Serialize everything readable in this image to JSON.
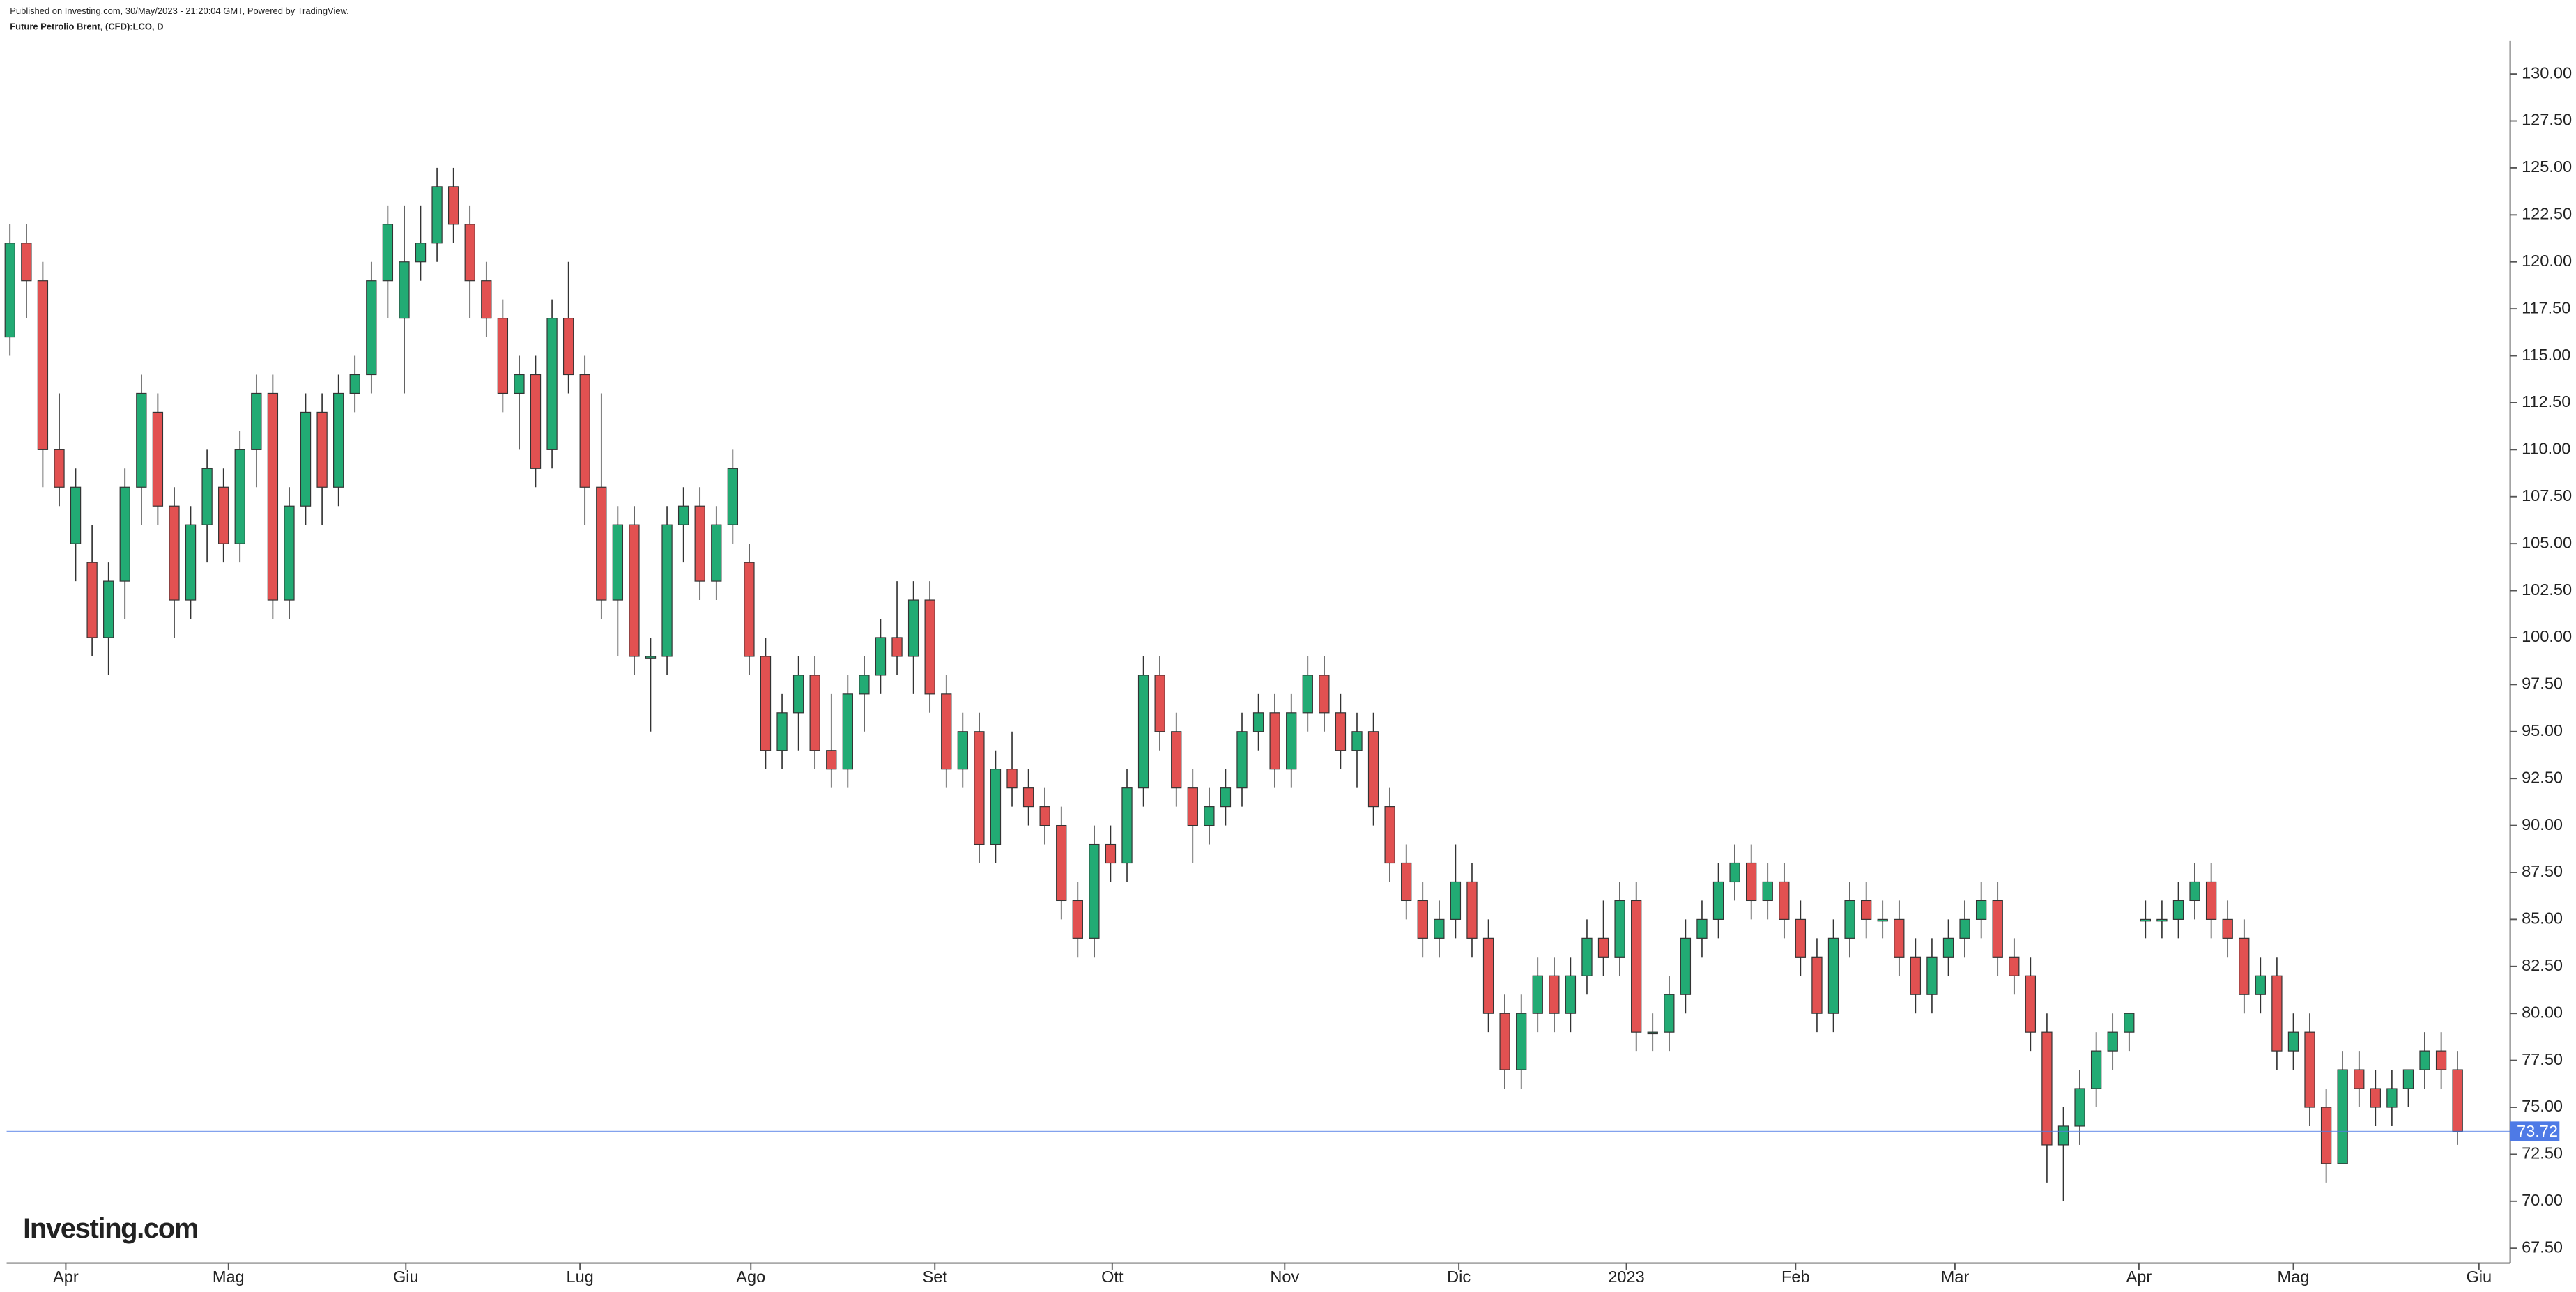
{
  "header": {
    "published": "Published on Investing.com, 30/May/2023 - 21:20:04 GMT, Powered by TradingView.",
    "symbol": "Future Petrolio Brent, (CFD):LCO, D"
  },
  "logo": "Investing.com",
  "chart_data": {
    "type": "candlestick",
    "up_color": "#22ab74",
    "down_color": "#e25151",
    "last_price": 73.72,
    "last_price_color": "#4e7ae6",
    "xlim": [
      -0.2,
      152.2
    ],
    "ylim": [
      66.71,
      131.75
    ],
    "xticks": [
      {
        "value": 3.4,
        "label": "Apr"
      },
      {
        "value": 13.3,
        "label": "Mag"
      },
      {
        "value": 24.1,
        "label": "Giu"
      },
      {
        "value": 34.7,
        "label": "Lug"
      },
      {
        "value": 45.1,
        "label": "Ago"
      },
      {
        "value": 56.3,
        "label": "Set"
      },
      {
        "value": 67.1,
        "label": "Ott"
      },
      {
        "value": 77.6,
        "label": "Nov"
      },
      {
        "value": 88.2,
        "label": "Dic"
      },
      {
        "value": 98.4,
        "label": "2023"
      },
      {
        "value": 108.7,
        "label": "Feb"
      },
      {
        "value": 118.4,
        "label": "Mar"
      },
      {
        "value": 129.6,
        "label": "Apr"
      },
      {
        "value": 139,
        "label": "Mag"
      },
      {
        "value": 150.3,
        "label": "Giu"
      }
    ],
    "yticks": [
      {
        "value": 67.5,
        "label": "67.50"
      },
      {
        "value": 70,
        "label": "70.00"
      },
      {
        "value": 72.5,
        "label": "72.50"
      },
      {
        "value": 75,
        "label": "75.00"
      },
      {
        "value": 77.5,
        "label": "77.50"
      },
      {
        "value": 80,
        "label": "80.00"
      },
      {
        "value": 82.5,
        "label": "82.50"
      },
      {
        "value": 85,
        "label": "85.00"
      },
      {
        "value": 87.5,
        "label": "87.50"
      },
      {
        "value": 90,
        "label": "90.00"
      },
      {
        "value": 92.5,
        "label": "92.50"
      },
      {
        "value": 95,
        "label": "95.00"
      },
      {
        "value": 97.5,
        "label": "97.50"
      },
      {
        "value": 100,
        "label": "100.00"
      },
      {
        "value": 102.5,
        "label": "102.50"
      },
      {
        "value": 105,
        "label": "105.00"
      },
      {
        "value": 107.5,
        "label": "107.50"
      },
      {
        "value": 110,
        "label": "110.00"
      },
      {
        "value": 112.5,
        "label": "112.50"
      },
      {
        "value": 115,
        "label": "115.00"
      },
      {
        "value": 117.5,
        "label": "117.50"
      },
      {
        "value": 120,
        "label": "120.00"
      },
      {
        "value": 122.5,
        "label": "122.50"
      },
      {
        "value": 125,
        "label": "125.00"
      },
      {
        "value": 127.5,
        "label": "127.50"
      },
      {
        "value": 130,
        "label": "130.00"
      }
    ],
    "ohlc": [
      [
        116,
        122,
        115,
        121
      ],
      [
        121,
        122,
        117,
        119
      ],
      [
        119,
        120,
        108,
        110
      ],
      [
        110,
        113,
        107,
        108
      ],
      [
        105,
        109,
        103,
        108
      ],
      [
        104,
        106,
        99,
        100
      ],
      [
        100,
        104,
        98,
        103
      ],
      [
        103,
        109,
        101,
        108
      ],
      [
        108,
        114,
        106,
        113
      ],
      [
        112,
        113,
        106,
        107
      ],
      [
        107,
        108,
        100,
        102
      ],
      [
        102,
        107,
        101,
        106
      ],
      [
        106,
        110,
        104,
        109
      ],
      [
        108,
        109,
        104,
        105
      ],
      [
        105,
        111,
        104,
        110
      ],
      [
        110,
        114,
        108,
        113
      ],
      [
        113,
        114,
        101,
        102
      ],
      [
        102,
        108,
        101,
        107
      ],
      [
        107,
        113,
        106,
        112
      ],
      [
        112,
        113,
        106,
        108
      ],
      [
        108,
        114,
        107,
        113
      ],
      [
        113,
        115,
        112,
        114
      ],
      [
        114,
        120,
        113,
        119
      ],
      [
        119,
        123,
        117,
        122
      ],
      [
        117,
        123,
        113,
        120
      ],
      [
        120,
        123,
        119,
        121
      ],
      [
        121,
        125,
        120,
        124
      ],
      [
        124,
        125,
        121,
        122
      ],
      [
        122,
        123,
        117,
        119
      ],
      [
        119,
        120,
        116,
        117
      ],
      [
        117,
        118,
        112,
        113
      ],
      [
        113,
        115,
        110,
        114
      ],
      [
        114,
        115,
        108,
        109
      ],
      [
        110,
        118,
        109,
        117
      ],
      [
        117,
        120,
        113,
        114
      ],
      [
        114,
        115,
        106,
        108
      ],
      [
        108,
        113,
        101,
        102
      ],
      [
        102,
        107,
        99,
        106
      ],
      [
        106,
        107,
        98,
        99
      ],
      [
        99,
        100,
        95,
        99
      ],
      [
        99,
        107,
        98,
        106
      ],
      [
        106,
        108,
        104,
        107
      ],
      [
        107,
        108,
        102,
        103
      ],
      [
        103,
        107,
        102,
        106
      ],
      [
        106,
        110,
        105,
        109
      ],
      [
        104,
        105,
        98,
        99
      ],
      [
        99,
        100,
        93,
        94
      ],
      [
        94,
        97,
        93,
        96
      ],
      [
        96,
        99,
        94,
        98
      ],
      [
        98,
        99,
        93,
        94
      ],
      [
        94,
        97,
        92,
        93
      ],
      [
        93,
        98,
        92,
        97
      ],
      [
        97,
        99,
        95,
        98
      ],
      [
        98,
        101,
        97,
        100
      ],
      [
        100,
        103,
        98,
        99
      ],
      [
        99,
        103,
        97,
        102
      ],
      [
        102,
        103,
        96,
        97
      ],
      [
        97,
        98,
        92,
        93
      ],
      [
        93,
        96,
        92,
        95
      ],
      [
        95,
        96,
        88,
        89
      ],
      [
        89,
        94,
        88,
        93
      ],
      [
        93,
        95,
        91,
        92
      ],
      [
        92,
        93,
        90,
        91
      ],
      [
        91,
        92,
        89,
        90
      ],
      [
        90,
        91,
        85,
        86
      ],
      [
        86,
        87,
        83,
        84
      ],
      [
        84,
        90,
        83,
        89
      ],
      [
        89,
        90,
        87,
        88
      ],
      [
        88,
        93,
        87,
        92
      ],
      [
        92,
        99,
        91,
        98
      ],
      [
        98,
        99,
        94,
        95
      ],
      [
        95,
        96,
        91,
        92
      ],
      [
        92,
        93,
        88,
        90
      ],
      [
        90,
        92,
        89,
        91
      ],
      [
        91,
        93,
        90,
        92
      ],
      [
        92,
        96,
        91,
        95
      ],
      [
        95,
        97,
        94,
        96
      ],
      [
        96,
        97,
        92,
        93
      ],
      [
        93,
        97,
        92,
        96
      ],
      [
        96,
        99,
        95,
        98
      ],
      [
        98,
        99,
        95,
        96
      ],
      [
        96,
        97,
        93,
        94
      ],
      [
        94,
        96,
        92,
        95
      ],
      [
        95,
        96,
        90,
        91
      ],
      [
        91,
        92,
        87,
        88
      ],
      [
        88,
        89,
        85,
        86
      ],
      [
        86,
        87,
        83,
        84
      ],
      [
        84,
        86,
        83,
        85
      ],
      [
        85,
        89,
        84,
        87
      ],
      [
        87,
        88,
        83,
        84
      ],
      [
        84,
        85,
        79,
        80
      ],
      [
        80,
        81,
        76,
        77
      ],
      [
        77,
        81,
        76,
        80
      ],
      [
        80,
        83,
        79,
        82
      ],
      [
        82,
        83,
        79,
        80
      ],
      [
        80,
        83,
        79,
        82
      ],
      [
        82,
        85,
        81,
        84
      ],
      [
        84,
        86,
        82,
        83
      ],
      [
        83,
        87,
        82,
        86
      ],
      [
        86,
        87,
        78,
        79
      ],
      [
        79,
        80,
        78,
        79
      ],
      [
        79,
        82,
        78,
        81
      ],
      [
        81,
        85,
        80,
        84
      ],
      [
        84,
        86,
        83,
        85
      ],
      [
        85,
        88,
        84,
        87
      ],
      [
        87,
        89,
        86,
        88
      ],
      [
        88,
        89,
        85,
        86
      ],
      [
        86,
        88,
        85,
        87
      ],
      [
        87,
        88,
        84,
        85
      ],
      [
        85,
        86,
        82,
        83
      ],
      [
        83,
        84,
        79,
        80
      ],
      [
        80,
        85,
        79,
        84
      ],
      [
        84,
        87,
        83,
        86
      ],
      [
        86,
        87,
        84,
        85
      ],
      [
        85,
        86,
        84,
        85
      ],
      [
        85,
        86,
        82,
        83
      ],
      [
        83,
        84,
        80,
        81
      ],
      [
        81,
        84,
        80,
        83
      ],
      [
        83,
        85,
        82,
        84
      ],
      [
        84,
        86,
        83,
        85
      ],
      [
        85,
        87,
        84,
        86
      ],
      [
        86,
        87,
        82,
        83
      ],
      [
        83,
        84,
        81,
        82
      ],
      [
        82,
        83,
        78,
        79
      ],
      [
        79,
        80,
        71,
        73
      ],
      [
        73,
        75,
        70,
        74
      ],
      [
        74,
        77,
        73,
        76
      ],
      [
        76,
        79,
        75,
        78
      ],
      [
        78,
        80,
        77,
        79
      ],
      [
        79,
        80,
        78,
        80
      ],
      [
        85,
        86,
        84,
        85
      ],
      [
        85,
        86,
        84,
        85
      ],
      [
        85,
        87,
        84,
        86
      ],
      [
        86,
        88,
        85,
        87
      ],
      [
        87,
        88,
        84,
        85
      ],
      [
        85,
        86,
        83,
        84
      ],
      [
        84,
        85,
        80,
        81
      ],
      [
        81,
        83,
        80,
        82
      ],
      [
        82,
        83,
        77,
        78
      ],
      [
        78,
        80,
        77,
        79
      ],
      [
        79,
        80,
        74,
        75
      ],
      [
        75,
        76,
        71,
        72
      ],
      [
        72,
        78,
        72,
        77
      ],
      [
        77,
        78,
        75,
        76
      ],
      [
        76,
        77,
        74,
        75
      ],
      [
        75,
        77,
        74,
        76
      ],
      [
        76,
        77,
        75,
        77
      ],
      [
        77,
        79,
        76,
        78
      ],
      [
        78,
        79,
        76,
        77
      ],
      [
        77,
        78,
        73,
        73.72
      ]
    ]
  }
}
